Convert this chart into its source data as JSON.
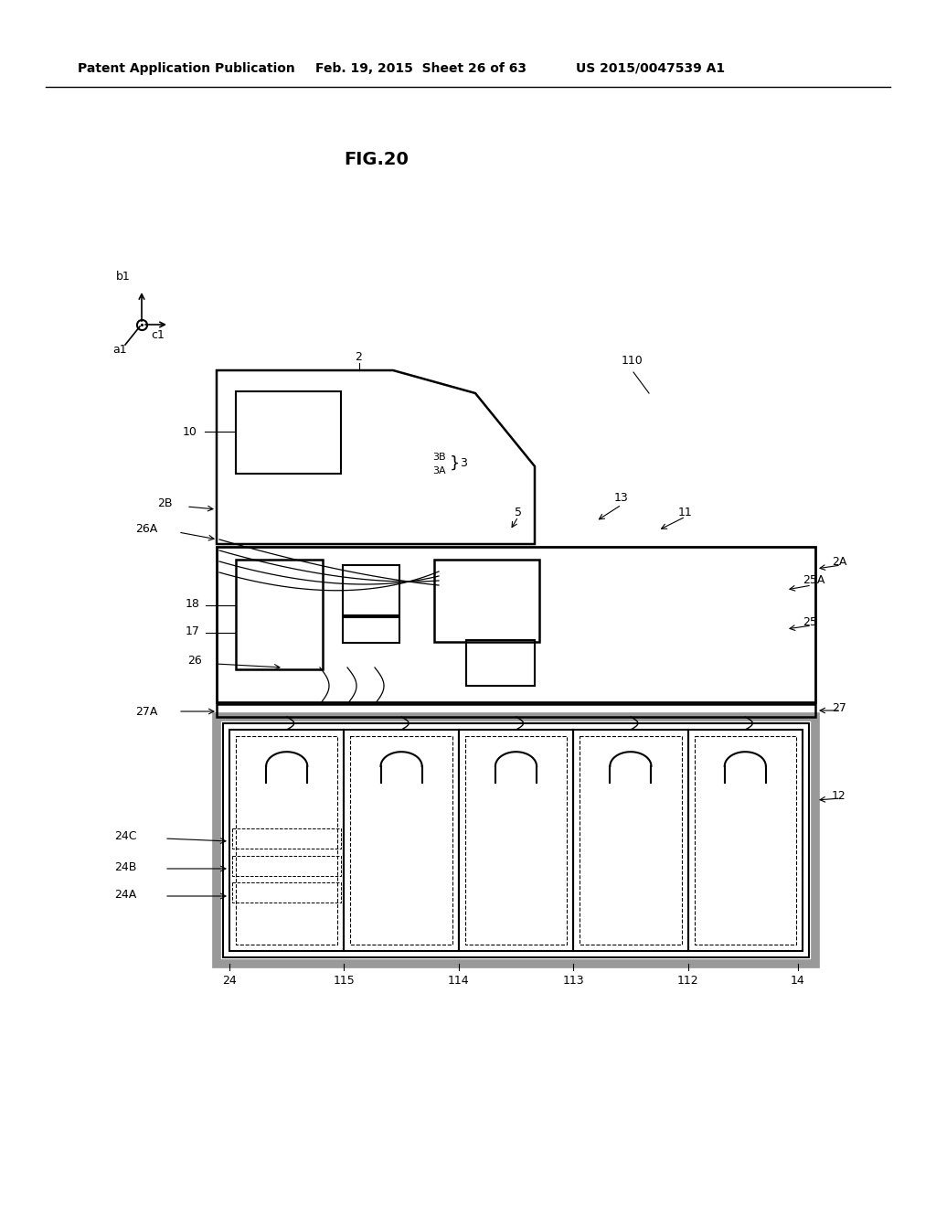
{
  "header_left": "Patent Application Publication",
  "header_mid": "Feb. 19, 2015  Sheet 26 of 63",
  "header_right": "US 2015/0047539 A1",
  "fig_label": "FIG.20",
  "bg_color": "#ffffff",
  "line_color": "#000000",
  "gray_color": "#999999"
}
